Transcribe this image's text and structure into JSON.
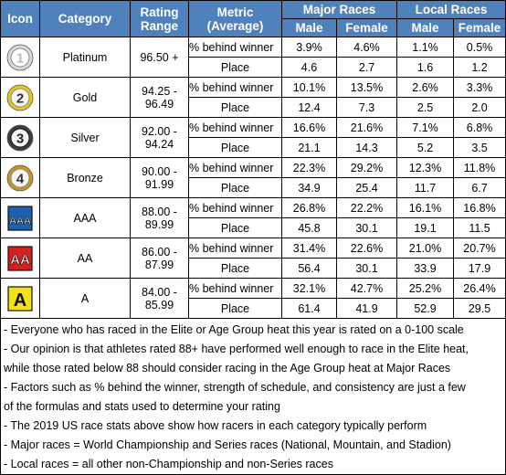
{
  "headers": {
    "icon": "Icon",
    "category": "Category",
    "rating_range": "Rating Range",
    "metric": "Metric (Average)",
    "major_races": "Major Races",
    "local_races": "Local Races",
    "male": "Male",
    "female": "Female"
  },
  "categories": [
    {
      "icon": "1",
      "icon_name": "platinum-number-one-icon",
      "name": "Platinum",
      "range": "96.50 +",
      "rows": [
        {
          "metric": "% behind winner",
          "major_male": "3.9%",
          "major_female": "4.6%",
          "local_male": "1.1%",
          "local_female": "0.5%"
        },
        {
          "metric": "Place",
          "major_male": "4.6",
          "major_female": "2.7",
          "local_male": "1.6",
          "local_female": "1.2"
        }
      ]
    },
    {
      "icon": "2",
      "icon_name": "gold-number-two-icon",
      "name": "Gold",
      "range": "94.25 - 96.49",
      "rows": [
        {
          "metric": "% behind winner",
          "major_male": "10.1%",
          "major_female": "13.5%",
          "local_male": "2.6%",
          "local_female": "3.3%"
        },
        {
          "metric": "Place",
          "major_male": "12.4",
          "major_female": "7.3",
          "local_male": "2.5",
          "local_female": "2.0"
        }
      ]
    },
    {
      "icon": "3",
      "icon_name": "silver-number-three-icon",
      "name": "Silver",
      "range": "92.00 - 94.24",
      "rows": [
        {
          "metric": "% behind winner",
          "major_male": "16.6%",
          "major_female": "21.6%",
          "local_male": "7.1%",
          "local_female": "6.8%"
        },
        {
          "metric": "Place",
          "major_male": "21.1",
          "major_female": "14.3",
          "local_male": "5.2",
          "local_female": "3.5"
        }
      ]
    },
    {
      "icon": "4",
      "icon_name": "bronze-number-four-icon",
      "name": "Bronze",
      "range": "90.00 - 91.99",
      "rows": [
        {
          "metric": "% behind winner",
          "major_male": "22.3%",
          "major_female": "29.2%",
          "local_male": "12.3%",
          "local_female": "11.8%"
        },
        {
          "metric": "Place",
          "major_male": "34.9",
          "major_female": "25.4",
          "local_male": "11.7",
          "local_female": "6.7"
        }
      ]
    },
    {
      "icon": "AAA",
      "icon_name": "aaa-badge-icon",
      "name": "AAA",
      "range": "88.00 - 89.99",
      "rows": [
        {
          "metric": "% behind winner",
          "major_male": "26.8%",
          "major_female": "22.2%",
          "local_male": "16.1%",
          "local_female": "16.8%"
        },
        {
          "metric": "Place",
          "major_male": "45.8",
          "major_female": "30.1",
          "local_male": "19.1",
          "local_female": "11.5"
        }
      ]
    },
    {
      "icon": "AA",
      "icon_name": "aa-badge-icon",
      "name": "AA",
      "range": "86.00 - 87.99",
      "rows": [
        {
          "metric": "% behind winner",
          "major_male": "31.4%",
          "major_female": "22.6%",
          "local_male": "21.0%",
          "local_female": "20.7%"
        },
        {
          "metric": "Place",
          "major_male": "56.4",
          "major_female": "30.1",
          "local_male": "33.9",
          "local_female": "17.9"
        }
      ]
    },
    {
      "icon": "A",
      "icon_name": "a-badge-icon",
      "name": "A",
      "range": "84.00 - 85.99",
      "rows": [
        {
          "metric": "% behind winner",
          "major_male": "32.1%",
          "major_female": "42.7%",
          "local_male": "25.2%",
          "local_female": "26.4%"
        },
        {
          "metric": "Place",
          "major_male": "61.4",
          "major_female": "41.9",
          "local_male": "52.9",
          "local_female": "29.5"
        }
      ]
    }
  ],
  "notes": [
    "- Everyone who has raced in the Elite or Age Group heat this year is rated on a 0-100 scale",
    "- Our opinion is that athletes rated 88+ have performed well enough to race in the Elite heat,",
    "  while those rated below 88 should consider racing in the Age Group heat at Major Races",
    "- Factors such as % behind the winner, strength of schedule, and consistency are just a few",
    "  of the formulas and stats used to determine your rating",
    "- The 2019 US race stats above show how racers in each category typically perform",
    "- Major races = World Championship and Series races (National, Mountain, and Stadion)",
    "- Local races = all other non-Championship and non-Series races"
  ],
  "colors": {
    "header_bg": "#4f81bd",
    "platinum": "#d9d9d9",
    "gold": "#e6c619",
    "silver": "#3c3c3c",
    "bronze": "#c8961e",
    "aaa": "#1f5fb0",
    "aa": "#d62020",
    "a": "#f2e01a"
  }
}
